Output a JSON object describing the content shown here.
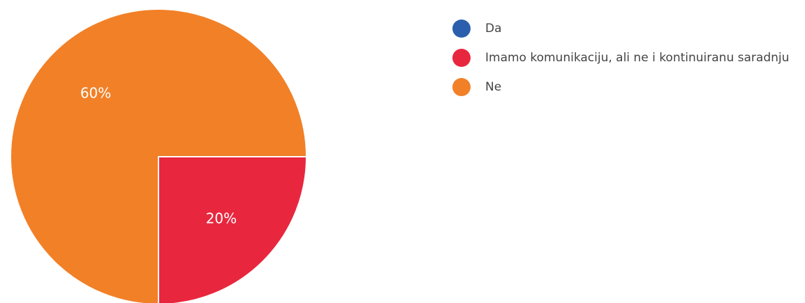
{
  "chart_data": {
    "type": "pie",
    "categories": [
      "Da",
      "Imamo komunikaciju, ali ne i kontinuiranu saradnju",
      "Ne"
    ],
    "values": [
      0,
      20,
      60
    ],
    "value_labels": [
      null,
      "20%",
      "60%"
    ],
    "colors": [
      "#2b5fad",
      "#e8273e",
      "#f28027"
    ],
    "legend": "right"
  }
}
